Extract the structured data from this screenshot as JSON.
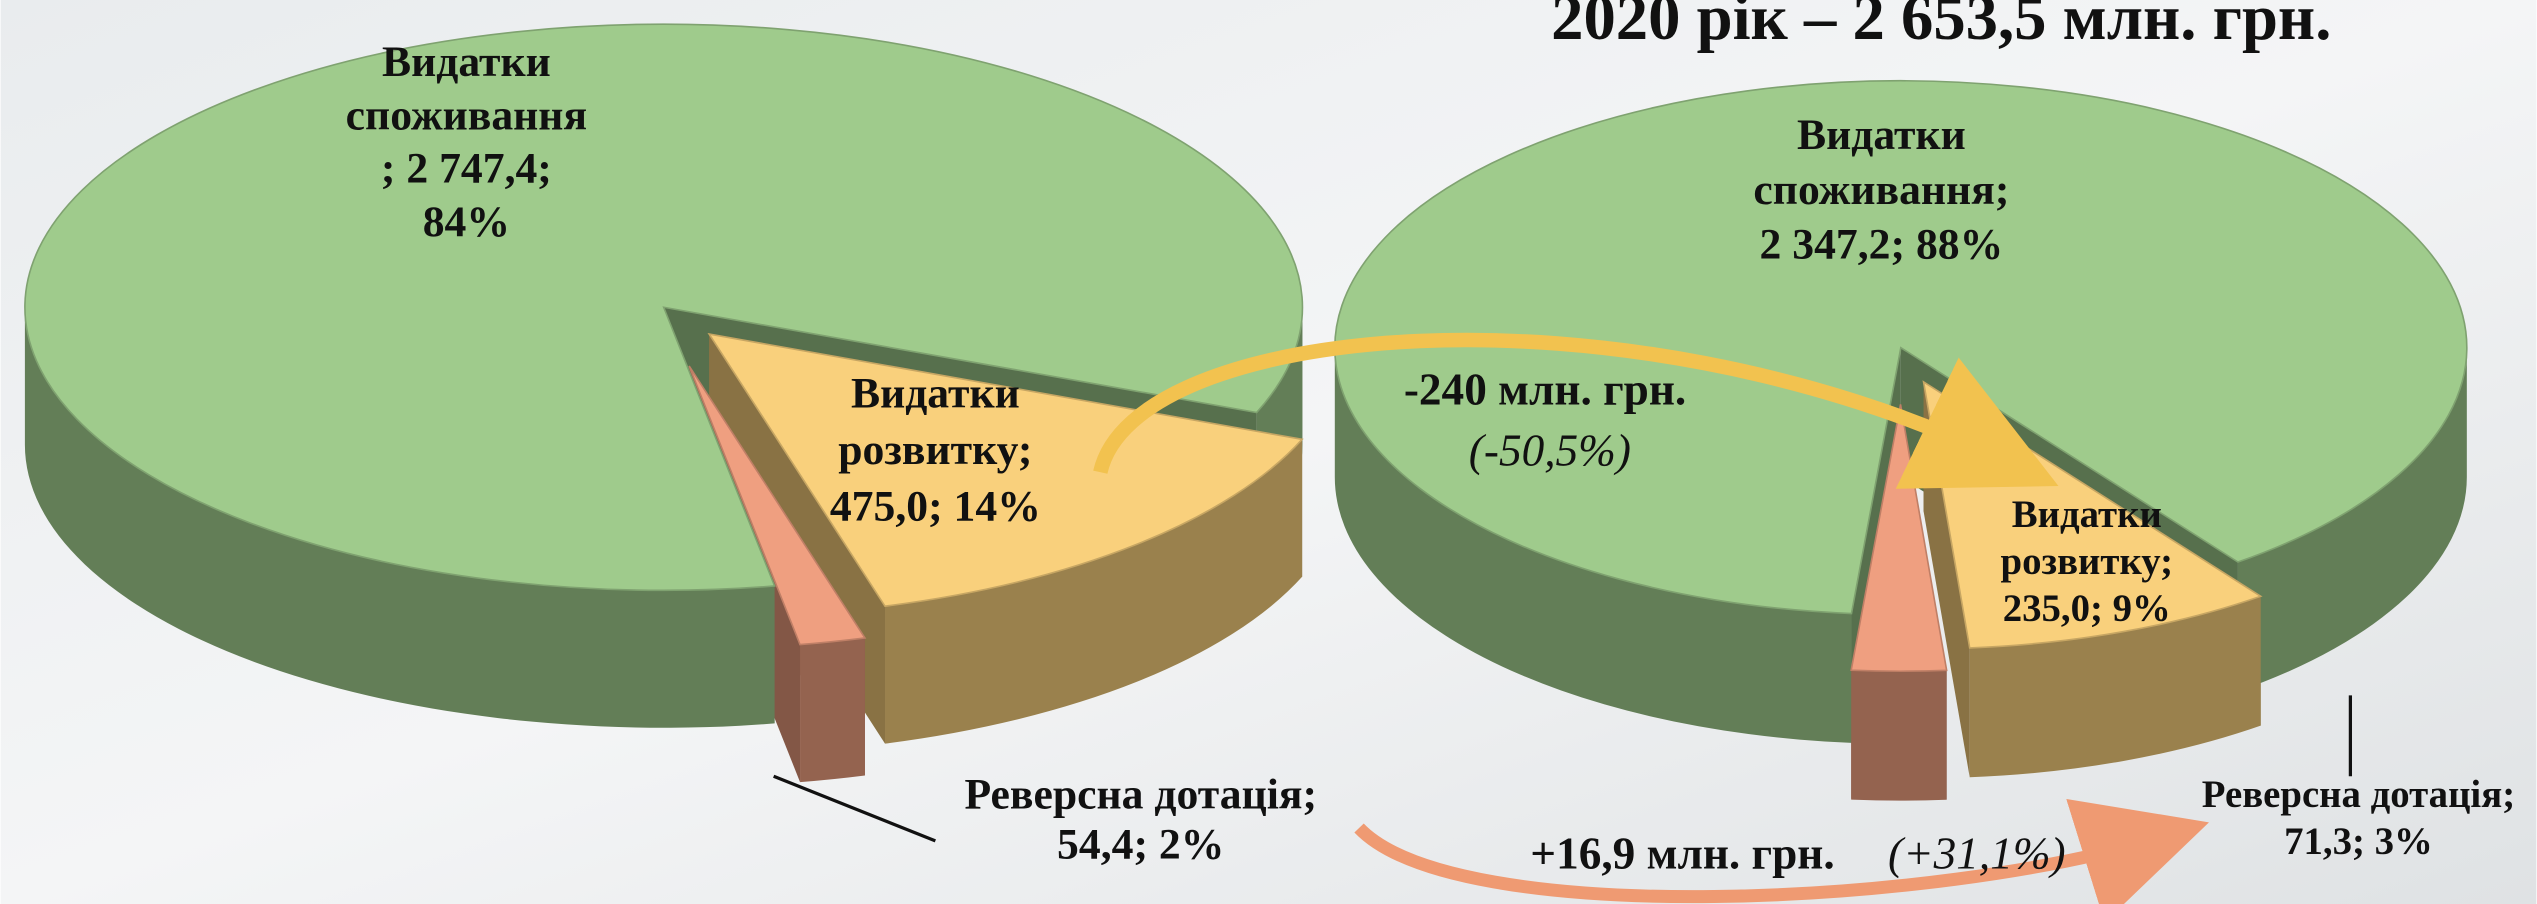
{
  "chart_data": [
    {
      "type": "pie",
      "values": [
        2747.4,
        475.0,
        54.4
      ],
      "value_labels": [
        "2 747,4",
        "475,0",
        "54,4"
      ],
      "percents": [
        84,
        14,
        2
      ],
      "percent_labels": [
        "84%",
        "14%",
        "2%"
      ],
      "data_labels": [
        [
          "Видатки",
          "споживання",
          "; 2 747,4;",
          "84%"
        ],
        [
          "Видатки",
          "розвитку;",
          "475,0; 14%"
        ],
        [
          "Реверсна дотація;",
          "54,4; 2%"
        ]
      ],
      "colors": [
        "#9fcb8c",
        "#f9d07c",
        "#ef9f80"
      ]
    },
    {
      "type": "pie",
      "title": "2020 рік – 2 653,5 млн. грн.",
      "values": [
        2347.2,
        235.0,
        71.3
      ],
      "value_labels": [
        "2 347,2",
        "235,0",
        "71,3"
      ],
      "percents": [
        88,
        9,
        3
      ],
      "percent_labels": [
        "88%",
        "9%",
        "3%"
      ],
      "data_labels": [
        [
          "Видатки",
          "споживання;",
          "2 347,2; 88%"
        ],
        [
          "Видатки",
          "розвитку;",
          "235,0; 9%"
        ],
        [
          "Реверсна дотація;",
          "71,3; 3%"
        ]
      ],
      "colors": [
        "#9fcb8c",
        "#f9d07c",
        "#ef9f80"
      ]
    }
  ],
  "annotations": [
    {
      "text": "-240 млн. грн.",
      "note": "(-50,5%)"
    },
    {
      "text": "+16,9 млн. грн.",
      "note": "(+31,1%)"
    }
  ]
}
